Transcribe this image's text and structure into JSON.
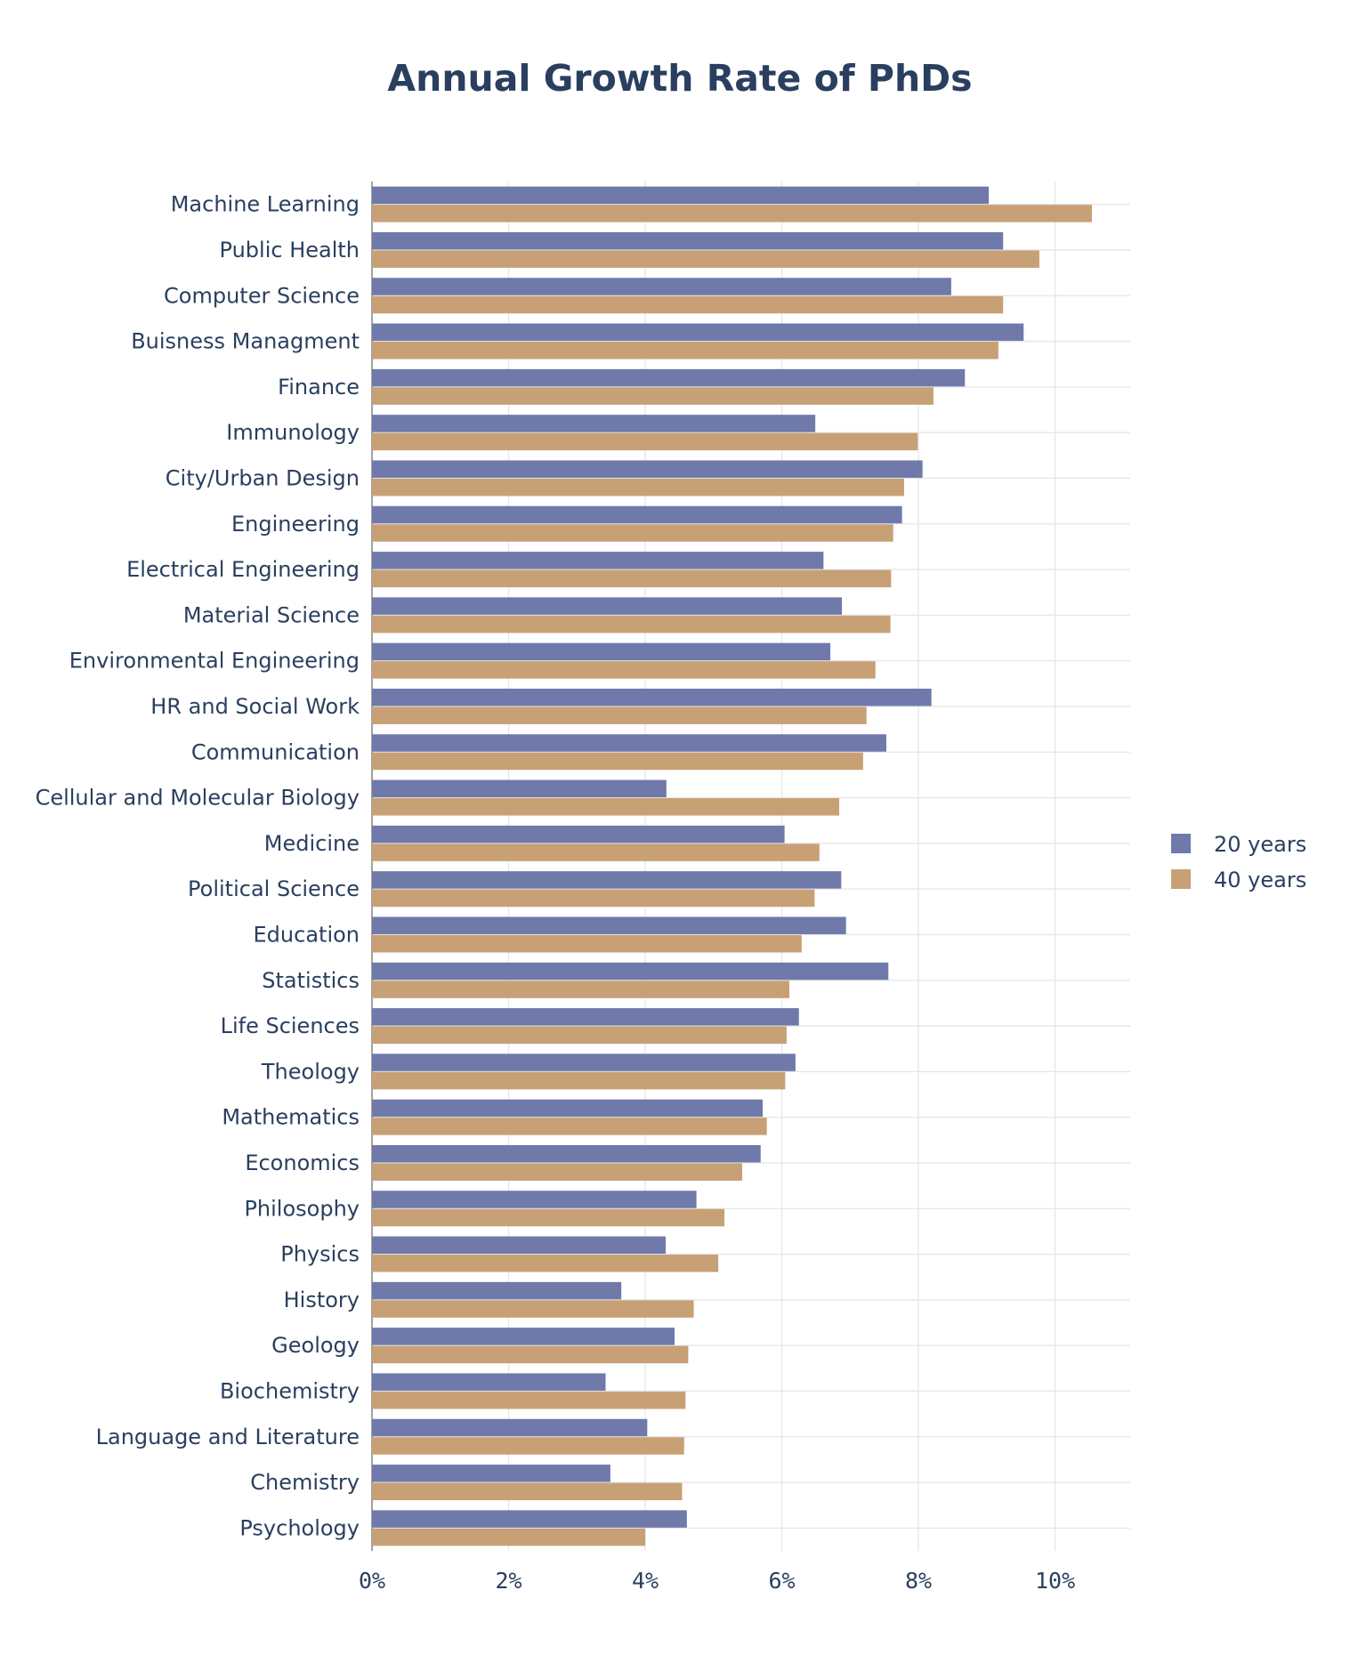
{
  "chart_data": {
    "type": "bar",
    "orientation": "horizontal",
    "title": "Annual Growth Rate of PhDs",
    "xlabel": "",
    "ylabel": "",
    "xlim": [
      0,
      11.1
    ],
    "x_ticks": [
      0,
      2,
      4,
      6,
      8,
      10
    ],
    "x_tick_labels": [
      "0%",
      "2%",
      "4%",
      "6%",
      "8%",
      "10%"
    ],
    "grid": true,
    "legend_position": "right",
    "categories": [
      "Machine Learning",
      "Public Health",
      "Computer Science",
      "Buisness Managment",
      "Finance",
      "Immunology",
      "City/Urban Design",
      "Engineering",
      "Electrical Engineering",
      "Material Science",
      "Environmental Engineering",
      "HR and Social Work",
      "Communication",
      "Cellular and Molecular Biology",
      "Medicine",
      "Political Science",
      "Education",
      "Statistics",
      "Life Sciences",
      "Theology",
      "Mathematics",
      "Economics",
      "Philosophy",
      "Physics",
      "History",
      "Geology",
      "Biochemistry",
      "Language and Literature",
      "Chemistry",
      "Psychology"
    ],
    "series": [
      {
        "name": "20 years",
        "color": "#6f7aab",
        "values": [
          9.03,
          9.24,
          8.48,
          9.54,
          8.68,
          6.49,
          8.06,
          7.76,
          6.61,
          6.88,
          6.71,
          8.19,
          7.53,
          4.31,
          6.04,
          6.87,
          6.94,
          7.56,
          6.25,
          6.2,
          5.72,
          5.69,
          4.75,
          4.3,
          3.65,
          4.43,
          3.42,
          4.03,
          3.49,
          4.61
        ]
      },
      {
        "name": "40 years",
        "color": "#c8a076",
        "values": [
          10.54,
          9.77,
          9.24,
          9.17,
          8.22,
          7.99,
          7.79,
          7.63,
          7.6,
          7.59,
          7.37,
          7.24,
          7.19,
          6.84,
          6.55,
          6.48,
          6.29,
          6.11,
          6.07,
          6.05,
          5.78,
          5.42,
          5.16,
          5.07,
          4.71,
          4.63,
          4.59,
          4.57,
          4.54,
          4.0
        ]
      }
    ]
  }
}
